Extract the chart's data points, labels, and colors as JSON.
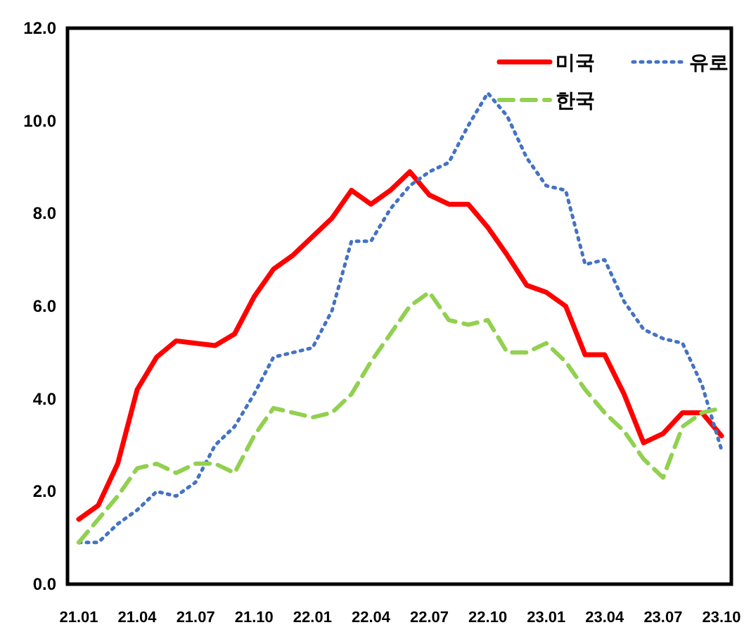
{
  "chart_data": {
    "type": "line",
    "categories": [
      "21.01",
      null,
      null,
      "21.04",
      null,
      null,
      "21.07",
      null,
      null,
      "21.10",
      null,
      null,
      "22.01",
      null,
      null,
      "22.04",
      null,
      null,
      "22.07",
      null,
      null,
      "22.10",
      null,
      null,
      "23.01",
      null,
      null,
      "23.04",
      null,
      null,
      "23.07",
      null,
      null,
      "23.10"
    ],
    "series": [
      {
        "name": "미국",
        "color": "#ff0000",
        "line_style": "solid",
        "values": [
          1.4,
          1.7,
          2.6,
          4.2,
          4.9,
          5.25,
          5.2,
          5.15,
          5.4,
          6.2,
          6.8,
          7.1,
          7.5,
          7.9,
          8.5,
          8.2,
          8.5,
          8.9,
          8.4,
          8.2,
          8.2,
          7.7,
          7.1,
          6.45,
          6.3,
          6.0,
          4.95,
          4.95,
          4.1,
          3.05,
          3.25,
          3.7,
          3.7,
          3.2
        ]
      },
      {
        "name": "유로",
        "color": "#4472c4",
        "line_style": "dotted",
        "values": [
          0.9,
          0.9,
          1.3,
          1.6,
          2.0,
          1.9,
          2.2,
          3.0,
          3.4,
          4.1,
          4.9,
          5.0,
          5.1,
          5.9,
          7.4,
          7.4,
          8.1,
          8.6,
          8.9,
          9.1,
          9.9,
          10.6,
          10.1,
          9.2,
          8.6,
          8.5,
          6.9,
          7.0,
          6.1,
          5.5,
          5.3,
          5.2,
          4.3,
          2.9
        ]
      },
      {
        "name": "한국",
        "color": "#92d050",
        "line_style": "dashed",
        "values": [
          0.9,
          1.4,
          1.9,
          2.5,
          2.6,
          2.4,
          2.6,
          2.6,
          2.4,
          3.2,
          3.8,
          3.7,
          3.6,
          3.7,
          4.1,
          4.8,
          5.4,
          6.0,
          6.3,
          5.7,
          5.6,
          5.7,
          5.0,
          5.0,
          5.2,
          4.8,
          4.2,
          3.7,
          3.3,
          2.7,
          2.3,
          3.4,
          3.7,
          3.8
        ]
      }
    ],
    "ylim": [
      0,
      12
    ],
    "yticks": [
      {
        "value": 0,
        "label": "0.0"
      },
      {
        "value": 2,
        "label": "2.0"
      },
      {
        "value": 4,
        "label": "4.0"
      },
      {
        "value": 6,
        "label": "6.0"
      },
      {
        "value": 8,
        "label": "8.0"
      },
      {
        "value": 10,
        "label": "10.0"
      },
      {
        "value": 12,
        "label": "12.0"
      }
    ],
    "grid": false,
    "legend": "top right"
  }
}
